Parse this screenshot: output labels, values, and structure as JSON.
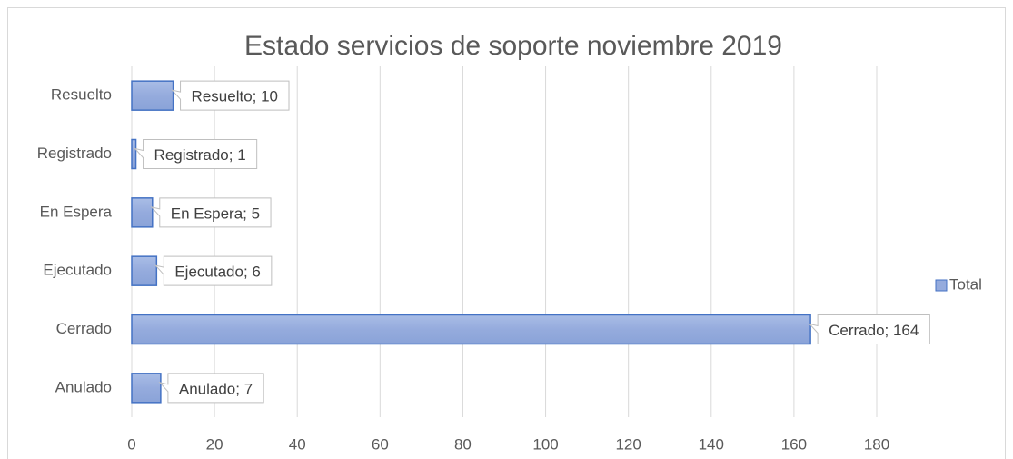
{
  "chart_data": {
    "type": "hbar",
    "title": "Estado servicios de soporte noviembre 2019",
    "categories": [
      "Anulado",
      "Cerrado",
      "Ejecutado",
      "En Espera",
      "Registrado",
      "Resuelto"
    ],
    "series": [
      {
        "name": "Total",
        "color": "#95abdd",
        "values": [
          7,
          164,
          6,
          5,
          1,
          10
        ],
        "value_labels": [
          "Anulado; 7",
          "Cerrado; 164",
          "Ejecutado; 6",
          "En Espera; 5",
          "Registrado; 1",
          "Resuelto; 10"
        ]
      }
    ],
    "xlim": [
      0,
      180
    ],
    "xticks": [
      0,
      20,
      40,
      60,
      80,
      100,
      120,
      140,
      160,
      180
    ],
    "grid": true,
    "legend": "right"
  }
}
